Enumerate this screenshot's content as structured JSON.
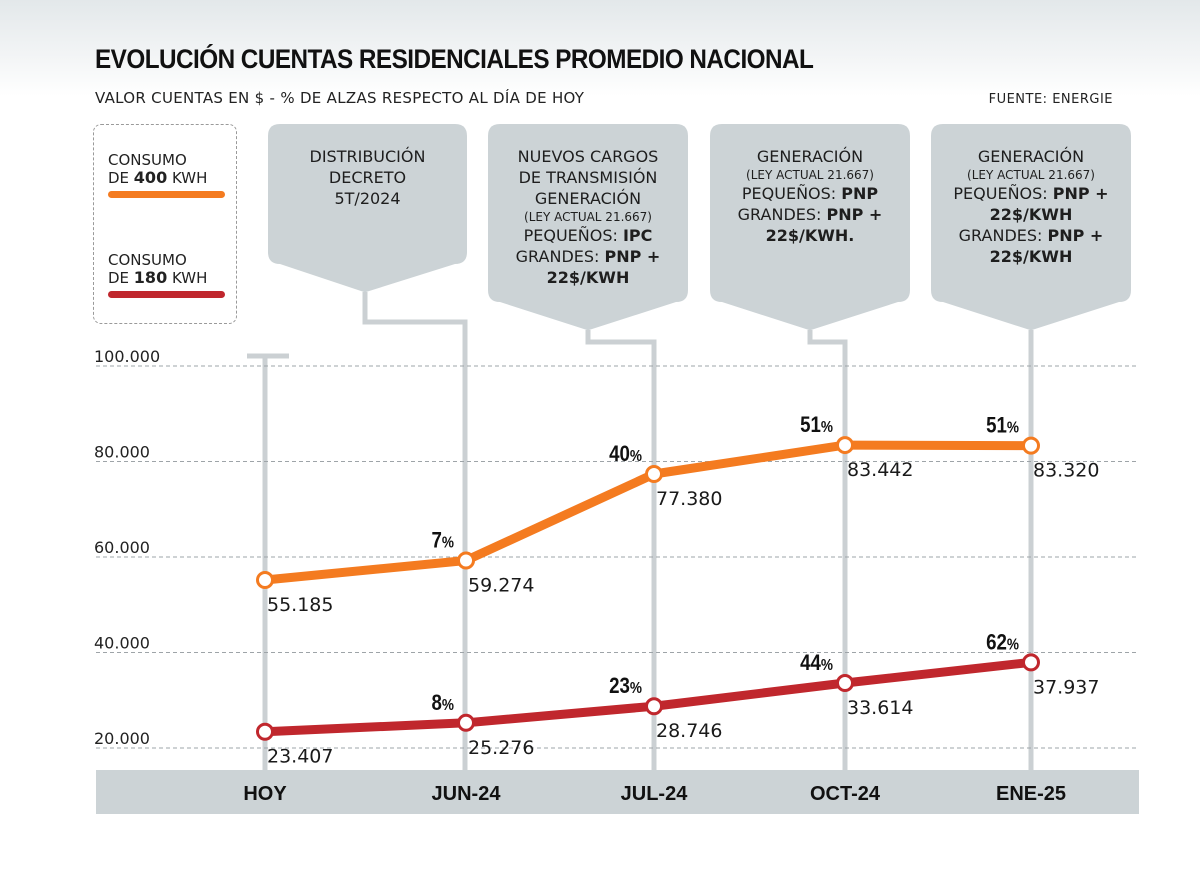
{
  "header": {
    "title": "EVOLUCIÓN CUENTAS RESIDENCIALES PROMEDIO NACIONAL",
    "subtitle": "VALOR CUENTAS EN $ - % DE ALZAS RESPECTO AL DÍA DE HOY",
    "source": "FUENTE: ENERGIE"
  },
  "legend": [
    {
      "line1": "CONSUMO",
      "line2_prefix": "DE ",
      "line2_bold": "400",
      "line2_suffix": " KWH",
      "color": "#f47b20"
    },
    {
      "line1": "CONSUMO",
      "line2_prefix": "DE ",
      "line2_bold": "180",
      "line2_suffix": " KWH",
      "color": "#c0272d"
    }
  ],
  "callouts": [
    {
      "lines": [
        {
          "text": "DISTRIBUCIÓN"
        },
        {
          "text": "DECRETO"
        },
        {
          "text": "5T/2024"
        }
      ]
    },
    {
      "lines": [
        {
          "text": "NUEVOS CARGOS"
        },
        {
          "text": "DE TRANSMISIÓN"
        },
        {
          "text": "GENERACIÓN"
        },
        {
          "text": "(LEY ACTUAL 21.667)",
          "small": true
        },
        {
          "text": "PEQUEÑOS: ",
          "bold_tail": "IPC"
        },
        {
          "text": "GRANDES: ",
          "bold_tail": "PNP +"
        },
        {
          "text": "",
          "bold_tail": "22$/KWH"
        }
      ]
    },
    {
      "lines": [
        {
          "text": "GENERACIÓN"
        },
        {
          "text": "(LEY ACTUAL 21.667)",
          "small": true
        },
        {
          "text": "PEQUEÑOS: ",
          "bold_tail": "PNP"
        },
        {
          "text": "GRANDES: ",
          "bold_tail": "PNP +"
        },
        {
          "text": "",
          "bold_tail": "22$/KWH."
        }
      ]
    },
    {
      "lines": [
        {
          "text": "GENERACIÓN"
        },
        {
          "text": "(LEY ACTUAL 21.667)",
          "small": true
        },
        {
          "text": "PEQUEÑOS: ",
          "bold_tail": "PNP +"
        },
        {
          "text": "",
          "bold_tail": "22$/KWH"
        },
        {
          "text": "GRANDES: ",
          "bold_tail": "PNP +"
        },
        {
          "text": "",
          "bold_tail": "22$/KWH"
        }
      ]
    }
  ],
  "chart_data": {
    "type": "line",
    "categories": [
      "HOY",
      "JUN-24",
      "JUL-24",
      "OCT-24",
      "ENE-25"
    ],
    "ylim": [
      20000,
      100000
    ],
    "yticks": [
      20000,
      40000,
      60000,
      80000,
      100000
    ],
    "ytick_labels": [
      "20.000",
      "40.000",
      "60.000",
      "80.000",
      "100.000"
    ],
    "grid": true,
    "series": [
      {
        "name": "CONSUMO DE 400 KWH",
        "color": "#f47b20",
        "values": [
          55185,
          59274,
          77380,
          83442,
          83320
        ],
        "value_labels": [
          "55.185",
          "59.274",
          "77.380",
          "83.442",
          "83.320"
        ],
        "pct_labels": [
          "",
          "7%",
          "40%",
          "51%",
          "51%"
        ]
      },
      {
        "name": "CONSUMO DE 180 KWH",
        "color": "#c0272d",
        "values": [
          23407,
          25276,
          28746,
          33614,
          37937
        ],
        "value_labels": [
          "23.407",
          "25.276",
          "28.746",
          "33.614",
          "37.937"
        ],
        "pct_labels": [
          "",
          "8%",
          "23%",
          "44%",
          "62%"
        ]
      }
    ]
  }
}
